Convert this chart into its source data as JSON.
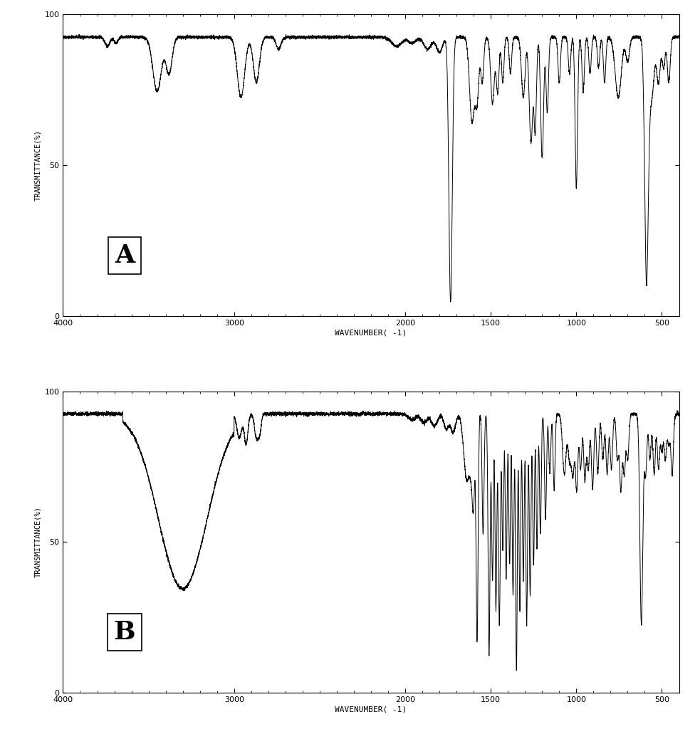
{
  "xlabel": "WAVENUMBER( -1)",
  "ylabel": "TRANSMITTANCE(%)",
  "xlim": [
    4000,
    400
  ],
  "ylim": [
    0,
    100
  ],
  "yticks": [
    0,
    50,
    100
  ],
  "xticks": [
    4000,
    3000,
    2000,
    1500,
    1000,
    500
  ],
  "label_A": "A",
  "label_B": "B",
  "background_color": "#ffffff",
  "line_color": "#000000"
}
